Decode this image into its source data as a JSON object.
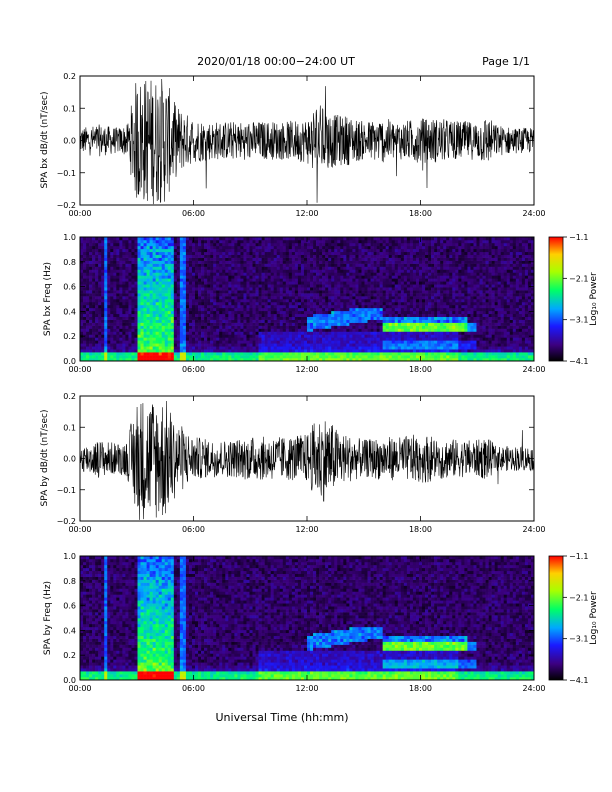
{
  "header": {
    "title": "2020/01/18  00:00−24:00 UT",
    "page": "Page 1/1"
  },
  "footer": {
    "xlabel": "Universal Time (hh:mm)"
  },
  "chart_data": [
    {
      "type": "line",
      "ylabel": "SPA bx dB/dt (nT/sec)",
      "xlim": [
        0,
        24
      ],
      "ylim": [
        -0.2,
        0.2
      ],
      "x_ticks": [
        "00:00",
        "06:00",
        "12:00",
        "18:00",
        "24:00"
      ],
      "y_ticks": [
        "−0.2",
        "−0.1",
        "0.0",
        "0.1",
        "0.2"
      ],
      "y_tick_values": [
        -0.2,
        -0.1,
        0.0,
        0.1,
        0.2
      ],
      "series": [
        {
          "x": [
            0,
            1,
            2,
            2.5,
            3,
            3.5,
            4,
            4.5,
            5,
            5.5,
            6,
            7,
            8,
            9,
            10,
            11,
            12,
            12.5,
            13,
            13.5,
            14,
            15,
            16,
            17,
            18,
            19,
            20,
            21,
            21.5,
            22,
            23,
            24
          ],
          "envelope": [
            0.04,
            0.05,
            0.04,
            0.05,
            0.2,
            0.2,
            0.2,
            0.2,
            0.12,
            0.09,
            0.07,
            0.06,
            0.06,
            0.06,
            0.06,
            0.06,
            0.07,
            0.12,
            0.1,
            0.08,
            0.08,
            0.06,
            0.07,
            0.06,
            0.07,
            0.07,
            0.06,
            0.06,
            0.08,
            0.05,
            0.04,
            0.04
          ]
        }
      ]
    },
    {
      "type": "heatmap",
      "ylabel": "SPA bx Freq (Hz)",
      "xlim": [
        0,
        24
      ],
      "ylim": [
        0,
        1.0
      ],
      "x_ticks": [
        "00:00",
        "06:00",
        "12:00",
        "18:00",
        "24:00"
      ],
      "y_ticks": [
        "0.0",
        "0.2",
        "0.4",
        "0.6",
        "0.8",
        "1.0"
      ],
      "y_tick_values": [
        0.0,
        0.2,
        0.4,
        0.6,
        0.8,
        1.0
      ],
      "colorbar": {
        "label": "Log₁₀ Power",
        "ticks": [
          "−1.1",
          "−2.1",
          "−3.1",
          "−4.1"
        ],
        "range": [
          -4.1,
          -1.1
        ]
      }
    },
    {
      "type": "line",
      "ylabel": "SPA by dB/dt (nT/sec)",
      "xlim": [
        0,
        24
      ],
      "ylim": [
        -0.2,
        0.2
      ],
      "x_ticks": [
        "00:00",
        "06:00",
        "12:00",
        "18:00",
        "24:00"
      ],
      "y_ticks": [
        "−0.2",
        "−0.1",
        "0.0",
        "0.1",
        "0.2"
      ],
      "y_tick_values": [
        -0.2,
        -0.1,
        0.0,
        0.1,
        0.2
      ],
      "series": [
        {
          "x": [
            0,
            1,
            2,
            2.5,
            3,
            3.5,
            4,
            4.5,
            5,
            5.5,
            6,
            7,
            8,
            9,
            10,
            11,
            12,
            12.5,
            13,
            13.5,
            14,
            15,
            16,
            17,
            18,
            19,
            20,
            21,
            21.5,
            22,
            23,
            24
          ],
          "envelope": [
            0.04,
            0.06,
            0.05,
            0.06,
            0.2,
            0.2,
            0.2,
            0.2,
            0.13,
            0.1,
            0.07,
            0.06,
            0.06,
            0.07,
            0.07,
            0.07,
            0.08,
            0.13,
            0.14,
            0.1,
            0.08,
            0.06,
            0.07,
            0.07,
            0.08,
            0.07,
            0.06,
            0.06,
            0.07,
            0.04,
            0.04,
            0.04
          ]
        }
      ]
    },
    {
      "type": "heatmap",
      "ylabel": "SPA by Freq (Hz)",
      "xlim": [
        0,
        24
      ],
      "ylim": [
        0,
        1.0
      ],
      "x_ticks": [
        "00:00",
        "06:00",
        "12:00",
        "18:00",
        "24:00"
      ],
      "y_ticks": [
        "0.0",
        "0.2",
        "0.4",
        "0.6",
        "0.8",
        "1.0"
      ],
      "y_tick_values": [
        0.0,
        0.2,
        0.4,
        0.6,
        0.8,
        1.0
      ],
      "colorbar": {
        "label": "Log₁₀ Power",
        "ticks": [
          "−1.1",
          "−2.1",
          "−3.1",
          "−4.1"
        ],
        "range": [
          -4.1,
          -1.1
        ]
      }
    }
  ]
}
